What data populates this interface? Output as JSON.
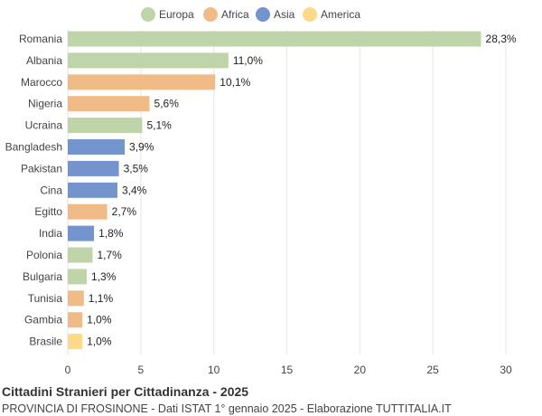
{
  "chart_data": {
    "type": "bar",
    "orientation": "horizontal",
    "title": "Cittadini Stranieri per Cittadinanza - 2025",
    "subtitle": "PROVINCIA DI FROSINONE - Dati ISTAT 1° gennaio 2025 - Elaborazione TUTTITALIA.IT",
    "xlim": [
      0,
      30
    ],
    "xticks": [
      0,
      5,
      10,
      15,
      20,
      25,
      30
    ],
    "grid": true,
    "legend_position": "top",
    "legend": [
      {
        "name": "Europa",
        "color": "#c0d4a9"
      },
      {
        "name": "Africa",
        "color": "#f1bb88"
      },
      {
        "name": "Asia",
        "color": "#7394cc"
      },
      {
        "name": "America",
        "color": "#fdd98a"
      }
    ],
    "categories": [
      "Romania",
      "Albania",
      "Marocco",
      "Nigeria",
      "Ucraina",
      "Bangladesh",
      "Pakistan",
      "Cina",
      "Egitto",
      "India",
      "Polonia",
      "Bulgaria",
      "Tunisia",
      "Gambia",
      "Brasile"
    ],
    "values": [
      28.3,
      11.0,
      10.1,
      5.6,
      5.1,
      3.9,
      3.5,
      3.4,
      2.7,
      1.8,
      1.7,
      1.3,
      1.1,
      1.0,
      1.0
    ],
    "value_labels": [
      "28,3%",
      "11,0%",
      "10,1%",
      "5,6%",
      "5,1%",
      "3,9%",
      "3,5%",
      "3,4%",
      "2,7%",
      "1,8%",
      "1,7%",
      "1,3%",
      "1,1%",
      "1,0%",
      "1,0%"
    ],
    "continents": [
      "Europa",
      "Europa",
      "Africa",
      "Africa",
      "Europa",
      "Asia",
      "Asia",
      "Asia",
      "Africa",
      "Asia",
      "Europa",
      "Europa",
      "Africa",
      "Africa",
      "America"
    ]
  }
}
